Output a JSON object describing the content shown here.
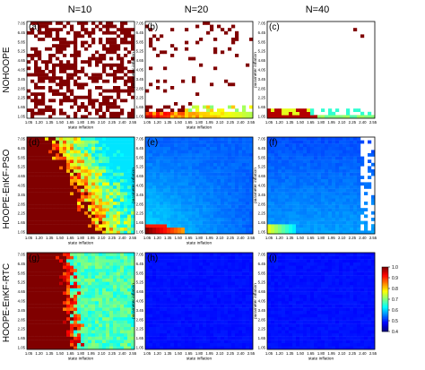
{
  "figure": {
    "columns": [
      "N=10",
      "N=20",
      "N=40"
    ],
    "rows": [
      "NOHOOPE",
      "HOOPE-EnKF-PSO",
      "HOOPE-EnKF-RTC"
    ]
  },
  "chart_data": {
    "type": "heatmap",
    "x_label": "state inflation",
    "y_label": "parameter inflation",
    "x_ticks": [
      "1.05",
      "1.20",
      "1.35",
      "1.50",
      "1.65",
      "1.80",
      "1.95",
      "2.10",
      "2.25",
      "2.40",
      "2.55"
    ],
    "y_ticks": [
      "1.05",
      "1.65",
      "2.25",
      "2.85",
      "3.45",
      "4.05",
      "4.65",
      "5.25",
      "5.85",
      "6.45",
      "7.05"
    ],
    "x_range": [
      1.05,
      2.55
    ],
    "y_range": [
      1.05,
      7.05
    ],
    "grid_cells": [
      30,
      30
    ],
    "colorbar": {
      "min": 0.4,
      "max": 1.0,
      "ticks": [
        "1.0",
        "0.9",
        "0.8",
        "0.7",
        "0.6",
        "0.5",
        "0.4"
      ],
      "colormap": "jet"
    },
    "panels": [
      {
        "label": "(a)",
        "row": "NOHOOPE",
        "column": "N=10",
        "pattern": "sparse-red-dense",
        "x_label_shown": true,
        "y_label_shown": false
      },
      {
        "label": "(b)",
        "row": "NOHOOPE",
        "column": "N=20",
        "pattern": "sparse-red-scattered-with-bottom-band",
        "x_label_shown": true,
        "y_label_shown": true
      },
      {
        "label": "(c)",
        "row": "NOHOOPE",
        "column": "N=40",
        "pattern": "mostly-empty-bottom-band",
        "x_label_shown": false,
        "y_label_shown": true
      },
      {
        "label": "(d)",
        "row": "HOOPE-EnKF-PSO",
        "column": "N=10",
        "pattern": "red-left-gradient-right",
        "x_label_shown": true,
        "y_label_shown": false
      },
      {
        "label": "(e)",
        "row": "HOOPE-EnKF-PSO",
        "column": "N=20",
        "pattern": "blue-with-red-bottom-left",
        "x_label_shown": true,
        "y_label_shown": true
      },
      {
        "label": "(f)",
        "row": "HOOPE-EnKF-PSO",
        "column": "N=40",
        "pattern": "blue-with-white-right-edge",
        "x_label_shown": false,
        "y_label_shown": true
      },
      {
        "label": "(g)",
        "row": "HOOPE-EnKF-RTC",
        "column": "N=10",
        "pattern": "red-left-green-right",
        "x_label_shown": true,
        "y_label_shown": false
      },
      {
        "label": "(h)",
        "row": "HOOPE-EnKF-RTC",
        "column": "N=20",
        "pattern": "uniform-blue",
        "x_label_shown": true,
        "y_label_shown": true
      },
      {
        "label": "(i)",
        "row": "HOOPE-EnKF-RTC",
        "column": "N=40",
        "pattern": "uniform-blue",
        "x_label_shown": true,
        "y_label_shown": true
      }
    ]
  }
}
